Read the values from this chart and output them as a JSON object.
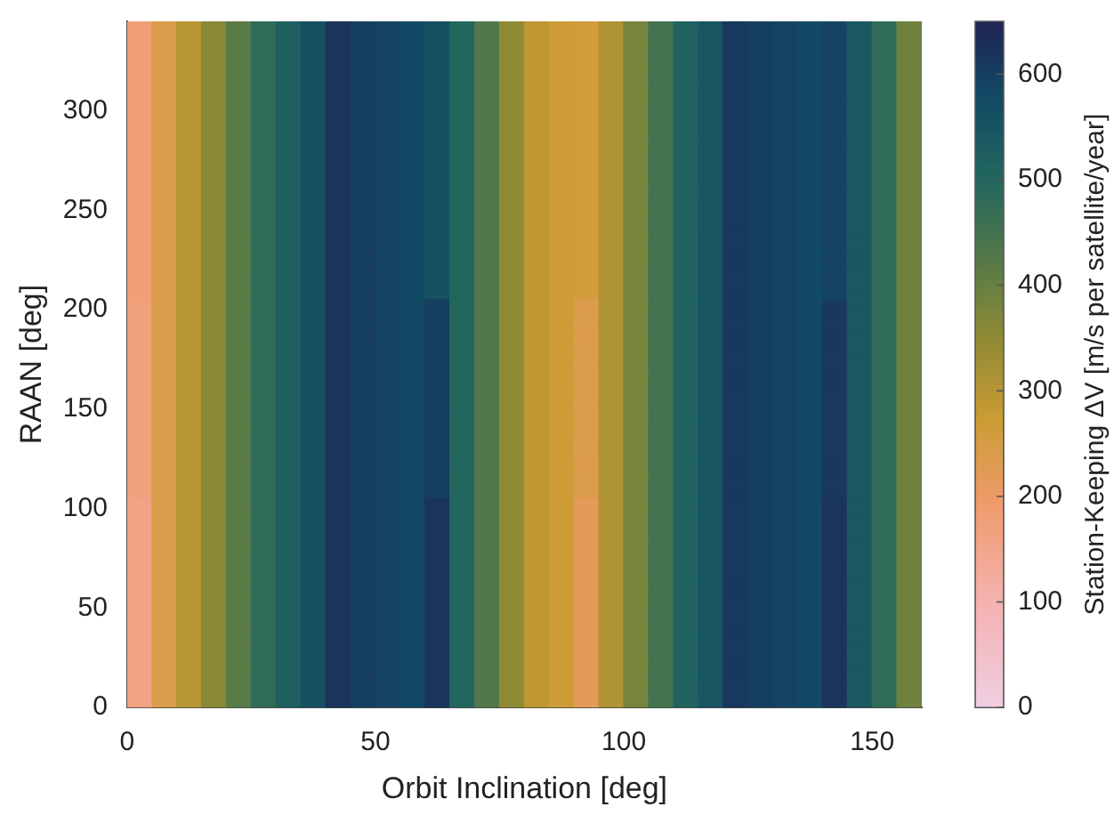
{
  "chart_data": {
    "type": "heatmap",
    "xlabel": "Orbit Inclination [deg]",
    "ylabel": "RAAN [deg]",
    "clabel": "Station-Keeping ΔV [m/s per satellite/year]",
    "x": [
      2.5,
      7.5,
      12.5,
      17.5,
      22.5,
      27.5,
      32.5,
      37.5,
      42.5,
      47.5,
      52.5,
      57.5,
      62.5,
      67.5,
      72.5,
      77.5,
      82.5,
      87.5,
      92.5,
      97.5,
      102.5,
      107.5,
      112.5,
      117.5,
      122.5,
      127.5,
      132.5,
      137.5,
      142.5,
      147.5,
      152.5,
      157.5
    ],
    "y": [
      342.5,
      337.5,
      332.5,
      327.5,
      322.5,
      317.5,
      312.5,
      307.5,
      302.5,
      297.5,
      292.5,
      287.5,
      282.5,
      277.5,
      272.5,
      267.5,
      262.5,
      257.5,
      252.5,
      247.5,
      242.5,
      237.5,
      232.5,
      227.5,
      222.5,
      217.5,
      212.5,
      207.5,
      202.5,
      197.5,
      192.5,
      187.5,
      182.5,
      177.5,
      172.5,
      167.5,
      162.5,
      157.5,
      152.5,
      147.5,
      142.5,
      137.5,
      132.5,
      127.5,
      122.5,
      117.5,
      112.5,
      107.5,
      102.5,
      97.5,
      92.5,
      87.5,
      82.5,
      77.5,
      72.5,
      67.5,
      62.5,
      57.5,
      52.5,
      47.5,
      42.5,
      37.5,
      32.5,
      27.5,
      22.5,
      17.5,
      12.5,
      7.5,
      2.5
    ],
    "xlim": [
      0,
      160
    ],
    "xticks": [
      0,
      50,
      100,
      150
    ],
    "ylim": [
      0,
      345
    ],
    "yticks": [
      0,
      50,
      100,
      150,
      200,
      250,
      300
    ],
    "clim": [
      0,
      650
    ],
    "cticks": [
      0,
      100,
      200,
      300,
      400,
      500,
      600
    ],
    "grid": false,
    "cells": [
      [
        180,
        240,
        300,
        360,
        420,
        480,
        520,
        560,
        620,
        600,
        590,
        580,
        560,
        500,
        430,
        350,
        290,
        270,
        260,
        310,
        380,
        450,
        510,
        550,
        610,
        600,
        590,
        580,
        590,
        540,
        480,
        390
      ],
      [
        180,
        240,
        300,
        360,
        420,
        480,
        520,
        560,
        620,
        600,
        590,
        580,
        560,
        500,
        430,
        350,
        290,
        270,
        260,
        310,
        380,
        450,
        510,
        550,
        610,
        600,
        590,
        580,
        590,
        540,
        480,
        390
      ],
      [
        180,
        240,
        300,
        360,
        420,
        480,
        520,
        560,
        620,
        600,
        590,
        580,
        560,
        500,
        430,
        350,
        290,
        270,
        260,
        310,
        380,
        450,
        510,
        550,
        610,
        600,
        590,
        580,
        590,
        540,
        480,
        390
      ],
      [
        180,
        240,
        300,
        360,
        420,
        480,
        520,
        560,
        620,
        600,
        590,
        580,
        560,
        500,
        430,
        350,
        290,
        270,
        260,
        310,
        380,
        450,
        510,
        550,
        610,
        600,
        590,
        580,
        590,
        540,
        480,
        390
      ],
      [
        180,
        240,
        300,
        360,
        420,
        480,
        520,
        560,
        620,
        600,
        590,
        580,
        560,
        500,
        430,
        350,
        290,
        270,
        260,
        310,
        380,
        450,
        510,
        550,
        610,
        600,
        590,
        580,
        590,
        540,
        480,
        390
      ],
      [
        180,
        240,
        300,
        360,
        420,
        480,
        520,
        560,
        620,
        600,
        590,
        580,
        560,
        500,
        430,
        350,
        290,
        270,
        260,
        310,
        380,
        450,
        510,
        550,
        610,
        600,
        590,
        580,
        590,
        540,
        480,
        390
      ],
      [
        180,
        240,
        300,
        360,
        420,
        480,
        520,
        560,
        620,
        600,
        590,
        580,
        560,
        500,
        430,
        350,
        290,
        270,
        260,
        310,
        380,
        450,
        510,
        550,
        610,
        600,
        590,
        580,
        590,
        540,
        480,
        390
      ],
      [
        180,
        240,
        300,
        360,
        420,
        480,
        520,
        560,
        620,
        600,
        590,
        580,
        560,
        500,
        430,
        350,
        290,
        270,
        260,
        310,
        380,
        450,
        510,
        550,
        610,
        600,
        590,
        580,
        590,
        540,
        480,
        390
      ],
      [
        180,
        240,
        300,
        360,
        420,
        480,
        520,
        560,
        620,
        600,
        590,
        580,
        560,
        500,
        430,
        350,
        290,
        270,
        260,
        310,
        380,
        450,
        510,
        550,
        610,
        600,
        590,
        580,
        590,
        540,
        480,
        390
      ],
      [
        180,
        240,
        300,
        360,
        420,
        480,
        520,
        560,
        620,
        600,
        590,
        580,
        560,
        500,
        430,
        350,
        290,
        270,
        260,
        310,
        380,
        450,
        510,
        550,
        610,
        600,
        590,
        580,
        590,
        540,
        480,
        390
      ],
      [
        180,
        240,
        300,
        360,
        420,
        480,
        520,
        560,
        620,
        600,
        590,
        580,
        560,
        500,
        430,
        350,
        290,
        270,
        260,
        310,
        380,
        450,
        510,
        550,
        610,
        600,
        590,
        580,
        590,
        540,
        480,
        390
      ],
      [
        180,
        240,
        300,
        360,
        420,
        480,
        520,
        560,
        620,
        600,
        590,
        580,
        560,
        500,
        430,
        350,
        290,
        270,
        260,
        310,
        380,
        450,
        510,
        550,
        610,
        600,
        590,
        580,
        590,
        540,
        480,
        390
      ],
      [
        180,
        240,
        300,
        360,
        420,
        480,
        520,
        560,
        620,
        600,
        590,
        580,
        560,
        500,
        430,
        350,
        290,
        270,
        260,
        310,
        380,
        450,
        510,
        550,
        610,
        600,
        590,
        580,
        590,
        540,
        480,
        390
      ],
      [
        180,
        240,
        300,
        360,
        420,
        480,
        520,
        560,
        620,
        600,
        590,
        580,
        560,
        500,
        430,
        350,
        290,
        270,
        260,
        310,
        380,
        450,
        510,
        550,
        610,
        600,
        590,
        580,
        590,
        540,
        480,
        390
      ],
      [
        180,
        240,
        300,
        360,
        420,
        480,
        520,
        560,
        620,
        600,
        590,
        580,
        560,
        500,
        430,
        350,
        290,
        270,
        260,
        310,
        380,
        450,
        510,
        550,
        610,
        600,
        590,
        580,
        590,
        540,
        480,
        390
      ],
      [
        180,
        240,
        300,
        360,
        420,
        480,
        520,
        560,
        620,
        600,
        590,
        580,
        560,
        500,
        430,
        350,
        290,
        270,
        260,
        310,
        380,
        450,
        510,
        550,
        610,
        600,
        590,
        580,
        590,
        540,
        480,
        390
      ],
      [
        180,
        240,
        300,
        360,
        420,
        480,
        520,
        560,
        620,
        600,
        590,
        580,
        560,
        500,
        430,
        350,
        290,
        270,
        260,
        310,
        380,
        450,
        510,
        550,
        610,
        600,
        590,
        580,
        590,
        540,
        480,
        390
      ],
      [
        180,
        240,
        300,
        360,
        420,
        480,
        520,
        560,
        620,
        600,
        590,
        580,
        560,
        500,
        430,
        350,
        290,
        270,
        260,
        310,
        380,
        450,
        510,
        550,
        610,
        600,
        590,
        580,
        590,
        540,
        480,
        390
      ],
      [
        180,
        240,
        300,
        360,
        420,
        480,
        520,
        560,
        620,
        600,
        590,
        580,
        560,
        500,
        430,
        350,
        290,
        270,
        260,
        310,
        380,
        450,
        510,
        550,
        610,
        600,
        590,
        580,
        590,
        540,
        480,
        390
      ],
      [
        180,
        240,
        300,
        360,
        420,
        480,
        520,
        560,
        620,
        600,
        590,
        580,
        560,
        500,
        430,
        350,
        290,
        270,
        260,
        310,
        380,
        450,
        510,
        550,
        610,
        600,
        590,
        580,
        590,
        540,
        480,
        390
      ],
      [
        180,
        240,
        300,
        360,
        420,
        480,
        520,
        560,
        620,
        600,
        590,
        580,
        560,
        500,
        430,
        350,
        290,
        270,
        260,
        310,
        380,
        450,
        510,
        550,
        610,
        600,
        590,
        580,
        590,
        540,
        480,
        390
      ],
      [
        180,
        240,
        300,
        360,
        420,
        480,
        520,
        560,
        620,
        600,
        590,
        580,
        560,
        500,
        430,
        350,
        290,
        270,
        260,
        310,
        380,
        450,
        510,
        550,
        610,
        600,
        590,
        580,
        590,
        540,
        480,
        390
      ],
      [
        180,
        240,
        300,
        360,
        420,
        480,
        520,
        560,
        620,
        600,
        590,
        580,
        560,
        500,
        430,
        350,
        290,
        270,
        260,
        310,
        380,
        450,
        510,
        550,
        610,
        600,
        590,
        580,
        590,
        540,
        480,
        390
      ],
      [
        180,
        240,
        300,
        360,
        420,
        480,
        520,
        560,
        620,
        600,
        590,
        580,
        560,
        500,
        430,
        350,
        290,
        270,
        260,
        310,
        380,
        450,
        510,
        550,
        610,
        600,
        590,
        580,
        590,
        540,
        480,
        390
      ],
      [
        180,
        240,
        300,
        360,
        420,
        480,
        520,
        560,
        620,
        600,
        590,
        580,
        560,
        500,
        430,
        350,
        290,
        270,
        260,
        310,
        380,
        450,
        510,
        550,
        610,
        600,
        590,
        580,
        590,
        540,
        480,
        390
      ],
      [
        180,
        240,
        300,
        360,
        420,
        480,
        520,
        560,
        620,
        600,
        590,
        580,
        560,
        500,
        430,
        350,
        290,
        270,
        260,
        310,
        380,
        450,
        510,
        550,
        610,
        600,
        590,
        580,
        590,
        540,
        480,
        390
      ],
      [
        180,
        240,
        300,
        360,
        420,
        480,
        520,
        560,
        620,
        600,
        590,
        580,
        560,
        500,
        430,
        350,
        290,
        270,
        260,
        310,
        380,
        450,
        510,
        550,
        610,
        600,
        590,
        580,
        590,
        540,
        480,
        390
      ],
      [
        180,
        240,
        300,
        360,
        420,
        480,
        520,
        560,
        620,
        600,
        590,
        580,
        560,
        500,
        430,
        350,
        290,
        270,
        260,
        310,
        380,
        450,
        510,
        550,
        610,
        600,
        590,
        580,
        590,
        540,
        480,
        390
      ],
      [
        170,
        240,
        300,
        360,
        420,
        480,
        520,
        560,
        620,
        600,
        590,
        580,
        600,
        500,
        430,
        350,
        290,
        270,
        240,
        310,
        380,
        450,
        510,
        550,
        610,
        600,
        590,
        580,
        610,
        540,
        480,
        390
      ],
      [
        170,
        240,
        300,
        360,
        420,
        480,
        520,
        560,
        620,
        600,
        590,
        580,
        600,
        500,
        430,
        350,
        290,
        270,
        240,
        310,
        380,
        450,
        510,
        550,
        610,
        600,
        590,
        580,
        610,
        540,
        480,
        390
      ],
      [
        170,
        240,
        300,
        360,
        420,
        480,
        520,
        560,
        620,
        600,
        590,
        580,
        600,
        500,
        430,
        350,
        290,
        270,
        240,
        310,
        380,
        450,
        510,
        550,
        610,
        600,
        590,
        580,
        610,
        540,
        480,
        390
      ],
      [
        170,
        240,
        300,
        360,
        420,
        480,
        520,
        560,
        620,
        600,
        590,
        580,
        600,
        500,
        430,
        350,
        290,
        270,
        240,
        310,
        380,
        450,
        510,
        550,
        610,
        600,
        590,
        580,
        610,
        540,
        480,
        390
      ],
      [
        170,
        240,
        300,
        360,
        420,
        480,
        520,
        560,
        620,
        600,
        590,
        580,
        600,
        500,
        430,
        350,
        290,
        270,
        240,
        310,
        380,
        450,
        510,
        550,
        610,
        600,
        590,
        580,
        610,
        540,
        480,
        390
      ],
      [
        170,
        240,
        300,
        360,
        420,
        480,
        520,
        560,
        620,
        600,
        590,
        580,
        600,
        500,
        430,
        350,
        290,
        270,
        240,
        310,
        380,
        450,
        510,
        550,
        610,
        600,
        590,
        580,
        610,
        540,
        480,
        390
      ],
      [
        170,
        240,
        300,
        360,
        420,
        480,
        520,
        560,
        620,
        600,
        590,
        580,
        600,
        500,
        430,
        350,
        290,
        270,
        240,
        310,
        380,
        450,
        510,
        550,
        610,
        600,
        590,
        580,
        610,
        540,
        480,
        390
      ],
      [
        170,
        240,
        300,
        360,
        420,
        480,
        520,
        560,
        620,
        600,
        590,
        580,
        600,
        500,
        430,
        350,
        290,
        270,
        240,
        310,
        380,
        450,
        510,
        550,
        610,
        600,
        590,
        580,
        610,
        540,
        480,
        390
      ],
      [
        170,
        240,
        300,
        360,
        420,
        480,
        520,
        560,
        620,
        600,
        590,
        580,
        600,
        500,
        430,
        350,
        290,
        270,
        240,
        310,
        380,
        450,
        510,
        550,
        610,
        600,
        590,
        580,
        610,
        540,
        480,
        390
      ],
      [
        170,
        240,
        300,
        360,
        420,
        480,
        520,
        560,
        620,
        600,
        590,
        580,
        600,
        500,
        430,
        350,
        290,
        270,
        240,
        310,
        380,
        450,
        510,
        550,
        610,
        600,
        590,
        580,
        610,
        540,
        480,
        390
      ],
      [
        170,
        240,
        300,
        360,
        420,
        480,
        520,
        560,
        620,
        600,
        590,
        580,
        600,
        500,
        430,
        350,
        290,
        270,
        240,
        310,
        380,
        450,
        510,
        550,
        610,
        600,
        590,
        580,
        610,
        540,
        480,
        390
      ],
      [
        170,
        240,
        300,
        360,
        420,
        480,
        520,
        560,
        620,
        600,
        590,
        580,
        600,
        500,
        430,
        350,
        290,
        270,
        240,
        310,
        380,
        450,
        510,
        550,
        610,
        600,
        590,
        580,
        610,
        540,
        480,
        390
      ],
      [
        170,
        240,
        300,
        360,
        420,
        480,
        520,
        560,
        620,
        600,
        590,
        580,
        600,
        500,
        430,
        350,
        290,
        270,
        240,
        310,
        380,
        450,
        510,
        550,
        610,
        600,
        590,
        580,
        610,
        540,
        480,
        390
      ],
      [
        170,
        240,
        300,
        360,
        420,
        480,
        520,
        560,
        620,
        600,
        590,
        580,
        600,
        500,
        430,
        350,
        290,
        270,
        240,
        310,
        380,
        450,
        510,
        550,
        610,
        600,
        590,
        580,
        610,
        540,
        480,
        390
      ],
      [
        170,
        240,
        300,
        360,
        420,
        480,
        520,
        560,
        620,
        600,
        590,
        580,
        600,
        500,
        430,
        350,
        290,
        270,
        240,
        310,
        380,
        450,
        510,
        550,
        610,
        600,
        590,
        580,
        610,
        540,
        480,
        390
      ],
      [
        170,
        240,
        300,
        360,
        420,
        480,
        520,
        560,
        620,
        600,
        590,
        580,
        600,
        500,
        430,
        350,
        290,
        270,
        240,
        310,
        380,
        450,
        510,
        550,
        610,
        600,
        590,
        580,
        610,
        540,
        480,
        390
      ],
      [
        170,
        240,
        300,
        360,
        420,
        480,
        520,
        560,
        620,
        600,
        590,
        580,
        600,
        500,
        430,
        350,
        290,
        270,
        240,
        310,
        380,
        450,
        510,
        550,
        610,
        600,
        590,
        580,
        610,
        540,
        480,
        390
      ],
      [
        170,
        240,
        300,
        360,
        420,
        480,
        520,
        560,
        620,
        600,
        590,
        580,
        600,
        500,
        430,
        350,
        290,
        270,
        240,
        310,
        380,
        450,
        510,
        550,
        610,
        600,
        590,
        580,
        610,
        540,
        480,
        390
      ],
      [
        170,
        240,
        300,
        360,
        420,
        480,
        520,
        560,
        620,
        600,
        590,
        580,
        600,
        500,
        430,
        350,
        290,
        270,
        240,
        310,
        380,
        450,
        510,
        550,
        610,
        600,
        590,
        580,
        610,
        540,
        480,
        390
      ],
      [
        170,
        240,
        300,
        360,
        420,
        480,
        520,
        560,
        620,
        600,
        590,
        580,
        600,
        500,
        430,
        350,
        290,
        270,
        240,
        310,
        380,
        450,
        510,
        550,
        610,
        600,
        590,
        580,
        610,
        540,
        480,
        390
      ],
      [
        160,
        240,
        300,
        360,
        420,
        480,
        520,
        560,
        620,
        600,
        590,
        580,
        620,
        500,
        430,
        350,
        290,
        270,
        220,
        310,
        380,
        450,
        510,
        550,
        610,
        600,
        590,
        580,
        620,
        540,
        480,
        390
      ],
      [
        160,
        240,
        300,
        360,
        420,
        480,
        520,
        560,
        620,
        600,
        590,
        580,
        620,
        500,
        430,
        350,
        290,
        270,
        220,
        310,
        380,
        450,
        510,
        550,
        610,
        600,
        590,
        580,
        620,
        540,
        480,
        390
      ],
      [
        160,
        240,
        300,
        360,
        420,
        480,
        520,
        560,
        620,
        600,
        590,
        580,
        620,
        500,
        430,
        350,
        290,
        270,
        220,
        310,
        380,
        450,
        510,
        550,
        610,
        600,
        590,
        580,
        620,
        540,
        480,
        390
      ],
      [
        160,
        240,
        300,
        360,
        420,
        480,
        520,
        560,
        620,
        600,
        590,
        580,
        620,
        500,
        430,
        350,
        290,
        270,
        220,
        310,
        380,
        450,
        510,
        550,
        610,
        600,
        590,
        580,
        620,
        540,
        480,
        390
      ],
      [
        160,
        240,
        300,
        360,
        420,
        480,
        520,
        560,
        620,
        600,
        590,
        580,
        620,
        500,
        430,
        350,
        290,
        270,
        220,
        310,
        380,
        450,
        510,
        550,
        610,
        600,
        590,
        580,
        620,
        540,
        480,
        390
      ],
      [
        160,
        240,
        300,
        360,
        420,
        480,
        520,
        560,
        620,
        600,
        590,
        580,
        620,
        500,
        430,
        350,
        290,
        270,
        220,
        310,
        380,
        450,
        510,
        550,
        610,
        600,
        590,
        580,
        620,
        540,
        480,
        390
      ],
      [
        160,
        240,
        300,
        360,
        420,
        480,
        520,
        560,
        620,
        600,
        590,
        580,
        620,
        500,
        430,
        350,
        290,
        270,
        220,
        310,
        380,
        450,
        510,
        550,
        610,
        600,
        590,
        580,
        620,
        540,
        480,
        390
      ],
      [
        160,
        240,
        300,
        360,
        420,
        480,
        520,
        560,
        620,
        600,
        590,
        580,
        620,
        500,
        430,
        350,
        290,
        270,
        220,
        310,
        380,
        450,
        510,
        550,
        610,
        600,
        590,
        580,
        620,
        540,
        480,
        390
      ],
      [
        160,
        240,
        300,
        360,
        420,
        480,
        520,
        560,
        620,
        600,
        590,
        580,
        620,
        500,
        430,
        350,
        290,
        270,
        220,
        310,
        380,
        450,
        510,
        550,
        610,
        600,
        590,
        580,
        620,
        540,
        480,
        390
      ],
      [
        160,
        240,
        300,
        360,
        420,
        480,
        520,
        560,
        620,
        600,
        590,
        580,
        620,
        500,
        430,
        350,
        290,
        270,
        220,
        310,
        380,
        450,
        510,
        550,
        610,
        600,
        590,
        580,
        620,
        540,
        480,
        390
      ],
      [
        160,
        240,
        300,
        360,
        420,
        480,
        520,
        560,
        620,
        600,
        590,
        580,
        620,
        500,
        430,
        350,
        290,
        270,
        220,
        310,
        380,
        450,
        510,
        550,
        610,
        600,
        590,
        580,
        620,
        540,
        480,
        390
      ],
      [
        160,
        240,
        300,
        360,
        420,
        480,
        520,
        560,
        620,
        600,
        590,
        580,
        620,
        500,
        430,
        350,
        290,
        270,
        220,
        310,
        380,
        450,
        510,
        550,
        610,
        600,
        590,
        580,
        620,
        540,
        480,
        390
      ],
      [
        160,
        240,
        300,
        360,
        420,
        480,
        520,
        560,
        620,
        600,
        590,
        580,
        620,
        500,
        430,
        350,
        290,
        270,
        220,
        310,
        380,
        450,
        510,
        550,
        610,
        600,
        590,
        580,
        620,
        540,
        480,
        390
      ],
      [
        160,
        240,
        300,
        360,
        420,
        480,
        520,
        560,
        620,
        600,
        590,
        580,
        620,
        500,
        430,
        350,
        290,
        270,
        220,
        310,
        380,
        450,
        510,
        550,
        610,
        600,
        590,
        580,
        620,
        540,
        480,
        390
      ],
      [
        160,
        240,
        300,
        360,
        420,
        480,
        520,
        560,
        620,
        600,
        590,
        580,
        620,
        500,
        430,
        350,
        290,
        270,
        220,
        310,
        380,
        450,
        510,
        550,
        610,
        600,
        590,
        580,
        620,
        540,
        480,
        390
      ],
      [
        160,
        240,
        300,
        360,
        420,
        480,
        520,
        560,
        620,
        600,
        590,
        580,
        620,
        500,
        430,
        350,
        290,
        270,
        220,
        310,
        380,
        450,
        510,
        550,
        610,
        600,
        590,
        580,
        620,
        540,
        480,
        390
      ],
      [
        160,
        240,
        300,
        360,
        420,
        480,
        520,
        560,
        620,
        600,
        590,
        580,
        620,
        500,
        430,
        350,
        290,
        270,
        220,
        310,
        380,
        450,
        510,
        550,
        610,
        600,
        590,
        580,
        620,
        540,
        480,
        390
      ],
      [
        160,
        240,
        300,
        360,
        420,
        480,
        520,
        560,
        620,
        600,
        590,
        580,
        620,
        500,
        430,
        350,
        290,
        270,
        220,
        310,
        380,
        450,
        510,
        550,
        610,
        600,
        590,
        580,
        620,
        540,
        480,
        390
      ],
      [
        160,
        240,
        300,
        360,
        420,
        480,
        520,
        560,
        620,
        600,
        590,
        580,
        620,
        500,
        430,
        350,
        290,
        270,
        220,
        310,
        380,
        450,
        510,
        550,
        610,
        600,
        590,
        580,
        620,
        540,
        480,
        390
      ],
      [
        160,
        240,
        300,
        360,
        420,
        480,
        520,
        560,
        620,
        600,
        590,
        580,
        620,
        500,
        430,
        350,
        290,
        270,
        220,
        310,
        380,
        450,
        510,
        550,
        610,
        600,
        590,
        580,
        620,
        540,
        480,
        390
      ],
      [
        160,
        240,
        300,
        360,
        420,
        480,
        520,
        560,
        620,
        600,
        590,
        580,
        620,
        500,
        430,
        350,
        290,
        270,
        220,
        310,
        380,
        450,
        510,
        550,
        610,
        600,
        590,
        580,
        620,
        540,
        480,
        390
      ]
    ]
  }
}
